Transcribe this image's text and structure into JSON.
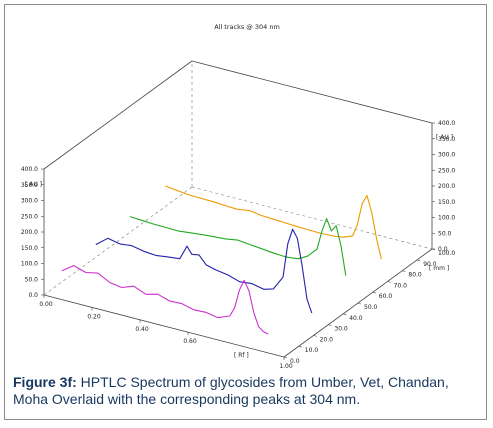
{
  "chart_data": {
    "type": "line",
    "title": "All tracks @ 304 nm",
    "render": "3d-waterfall",
    "x_axis": {
      "label": "[ Rf ]",
      "ticks": [
        "0.00",
        "0.20",
        "0.40",
        "0.60",
        "1.00"
      ],
      "range": [
        0,
        1
      ]
    },
    "y_axis": {
      "label": "[ AU ]",
      "ticks": [
        "0.0",
        "50.0",
        "100.0",
        "150.0",
        "200.0",
        "250.0",
        "300.0",
        "350.0",
        "400.0"
      ],
      "range": [
        0,
        400
      ]
    },
    "z_axis": {
      "label": "[ mm ]",
      "ticks": [
        "0.0",
        "10.0",
        "20.0",
        "30.0",
        "40.0",
        "50.0",
        "60.0",
        "70.0",
        "80.0",
        "90.0",
        "100.0"
      ],
      "range": [
        0,
        100
      ]
    },
    "right_axis": {
      "label": "[ AU ]",
      "ticks": [
        "0.0",
        "50.0",
        "100.0",
        "150.0",
        "200.0",
        "250.0",
        "300.0",
        "350.0",
        "400.0"
      ]
    },
    "series": [
      {
        "color": "#cc33cc",
        "z": 12,
        "x": [
          0.0,
          0.05,
          0.1,
          0.15,
          0.2,
          0.25,
          0.3,
          0.35,
          0.4,
          0.45,
          0.5,
          0.55,
          0.6,
          0.65,
          0.7,
          0.72,
          0.74,
          0.76,
          0.78,
          0.8,
          0.82,
          0.84,
          0.86
        ],
        "y": [
          36,
          62,
          50,
          58,
          38,
          32,
          46,
          30,
          40,
          28,
          30,
          20,
          22,
          15,
          30,
          60,
          120,
          155,
          125,
          60,
          20,
          8,
          4
        ]
      },
      {
        "color": "#2222aa",
        "z": 35,
        "x": [
          0.0,
          0.05,
          0.1,
          0.15,
          0.2,
          0.25,
          0.3,
          0.35,
          0.38,
          0.4,
          0.43,
          0.46,
          0.5,
          0.55,
          0.6,
          0.65,
          0.7,
          0.74,
          0.78,
          0.8,
          0.82,
          0.84,
          0.86,
          0.88,
          0.9
        ],
        "y": [
          40,
          70,
          62,
          66,
          58,
          55,
          60,
          64,
          110,
          88,
          92,
          66,
          58,
          52,
          40,
          44,
          36,
          45,
          90,
          200,
          250,
          225,
          140,
          40,
          0
        ]
      },
      {
        "color": "#22aa22",
        "z": 58,
        "x": [
          0.0,
          0.05,
          0.1,
          0.15,
          0.2,
          0.25,
          0.3,
          0.35,
          0.4,
          0.45,
          0.5,
          0.55,
          0.6,
          0.65,
          0.7,
          0.74,
          0.78,
          0.8,
          0.82,
          0.84,
          0.86,
          0.88,
          0.9
        ],
        "y": [
          50,
          48,
          46,
          45,
          44,
          48,
          52,
          55,
          58,
          64,
          60,
          56,
          52,
          50,
          54,
          70,
          100,
          160,
          205,
          170,
          190,
          130,
          40
        ]
      },
      {
        "color": "#ee9900",
        "z": 82,
        "x": [
          0.0,
          0.05,
          0.1,
          0.15,
          0.2,
          0.25,
          0.3,
          0.35,
          0.4,
          0.45,
          0.5,
          0.55,
          0.6,
          0.65,
          0.7,
          0.74,
          0.78,
          0.8,
          0.82,
          0.84,
          0.86,
          0.88,
          0.9
        ],
        "y": [
          65,
          60,
          56,
          55,
          54,
          52,
          50,
          56,
          50,
          48,
          46,
          44,
          43,
          42,
          44,
          48,
          60,
          100,
          170,
          200,
          150,
          70,
          10
        ]
      }
    ]
  },
  "caption": {
    "label": "Figure 3f:",
    "text": "HPTLC Spectrum of glycosides from Umber, Vet, Chandan, Moha Overlaid with the corresponding peaks at 304 nm."
  }
}
